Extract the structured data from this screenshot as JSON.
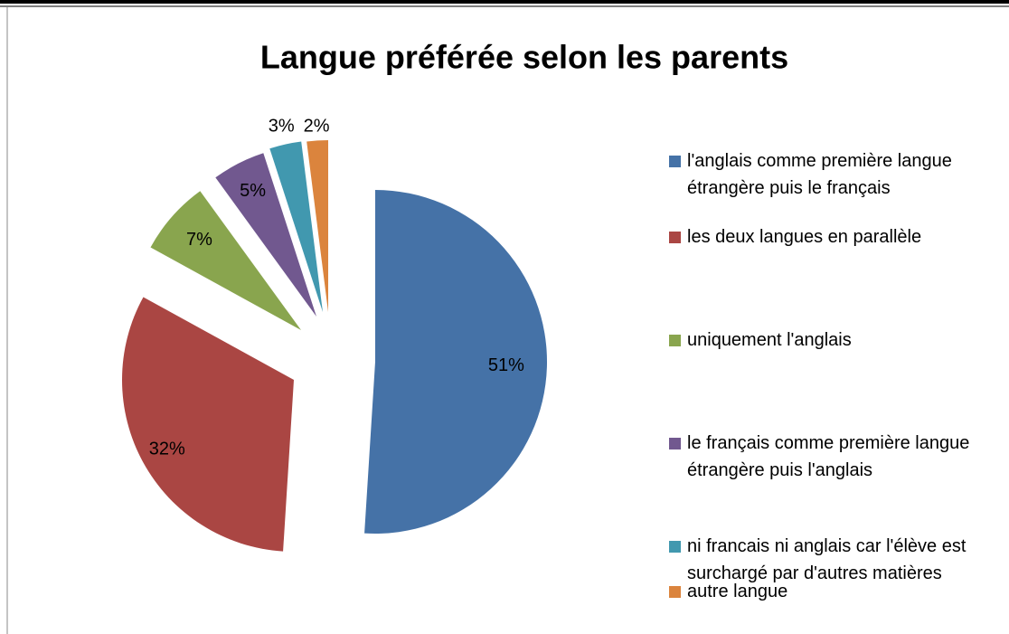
{
  "chart_data": {
    "type": "pie",
    "title": "Langue préférée selon les parents",
    "categories": [
      "l'anglais comme première langue étrangère puis le français",
      "les deux langues en parallèle",
      "uniquement l'anglais",
      "le français comme première langue étrangère puis l'anglais",
      "ni francais ni anglais car l'élève est surchargé par d'autres matières",
      "autre langue"
    ],
    "values": [
      51,
      32,
      7,
      5,
      3,
      2
    ],
    "value_labels": [
      "51%",
      "32%",
      "7%",
      "5%",
      "3%",
      "2%"
    ],
    "colors": [
      "#4572a7",
      "#aa4643",
      "#89a54e",
      "#71588f",
      "#4198af",
      "#db843d"
    ],
    "legend": "right"
  }
}
